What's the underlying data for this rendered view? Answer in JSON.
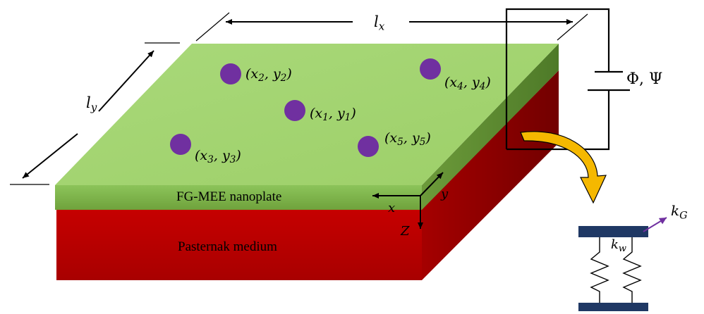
{
  "dimensions": {
    "lx": "l_x",
    "ly": "l_y"
  },
  "points": [
    {
      "id": "p2",
      "label": "(x_2, y_2)"
    },
    {
      "id": "p4",
      "label": "(x_4, y_4)"
    },
    {
      "id": "p1",
      "label": "(x_1, y_1)"
    },
    {
      "id": "p5",
      "label": "(x_5, y_5)"
    },
    {
      "id": "p3",
      "label": "(x_3, y_3)"
    }
  ],
  "layers": {
    "top": "FG-MEE nanoplate",
    "bottom": "Pasternak medium"
  },
  "axes": {
    "x": "x",
    "y": "y",
    "z": "Z"
  },
  "circuit": {
    "label": "Φ, Ψ"
  },
  "springs": {
    "winkler": "k_w",
    "shear": "k_G"
  },
  "colors": {
    "plate_top": "#a6d672",
    "plate_front": "#7fb24a",
    "medium_front": "#c00000",
    "medium_side": "#8a0000",
    "points": "#7030a0",
    "arrow": "#f5b800",
    "spring_bar": "#1f3864",
    "shear_arrow": "#7030a0"
  }
}
